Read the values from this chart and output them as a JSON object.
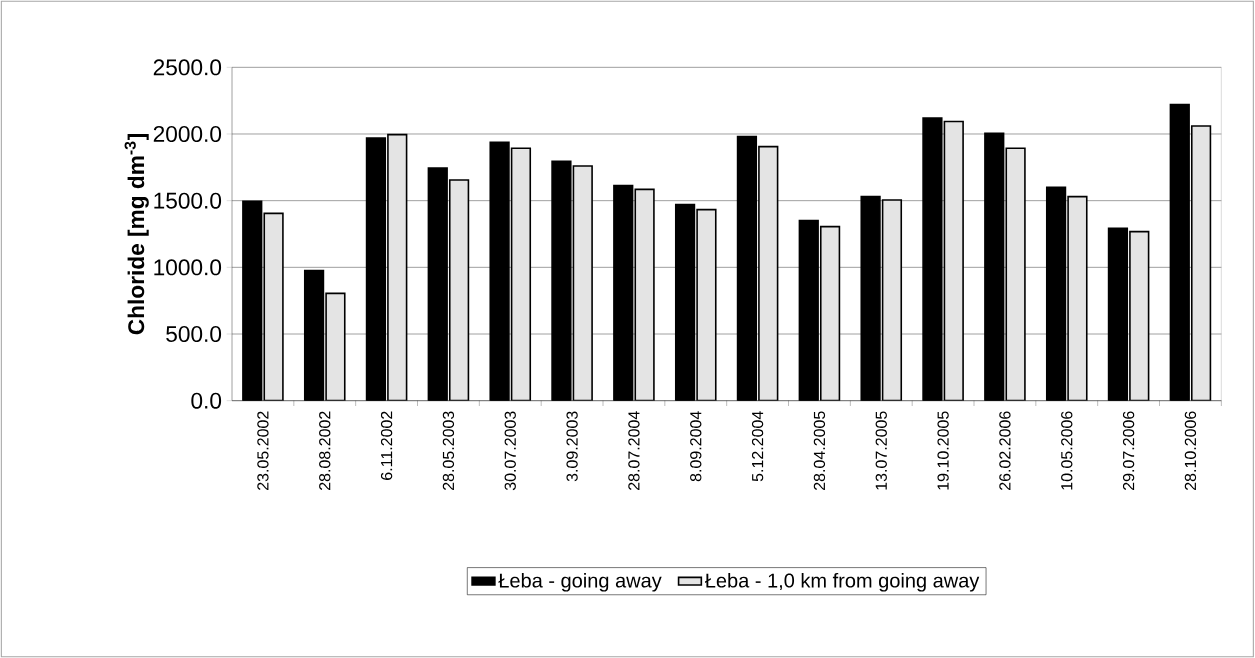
{
  "chart_data": {
    "type": "bar",
    "ylabel": "Chloride [mg dm$^{-3}$]",
    "categories": [
      "23.05.2002",
      "28.08.2002",
      "6.11.2002",
      "28.05.2003",
      "30.07.2003",
      "3.09.2003",
      "28.07.2004",
      "8.09.2004",
      "5.12.2004",
      "28.04.2005",
      "13.07.2005",
      "19.10.2005",
      "26.02.2006",
      "10.05.2006",
      "29.07.2006",
      "28.10.2006"
    ],
    "series": [
      {
        "name": "Łeba - going away",
        "color": "#000000",
        "values": [
          1495,
          975,
          1970,
          1745,
          1938,
          1795,
          1613,
          1470,
          1980,
          1350,
          1530,
          2120,
          2005,
          1600,
          1293,
          2220
        ]
      },
      {
        "name": "Łeba - 1,0 km from going away",
        "color": "#e4e4e4",
        "values": [
          1405,
          805,
          1995,
          1655,
          1893,
          1760,
          1585,
          1433,
          1905,
          1305,
          1505,
          2095,
          1893,
          1530,
          1268,
          2060
        ]
      }
    ],
    "ylim": [
      0,
      2500
    ],
    "yticks": [
      {
        "value": 0,
        "label": "0.0"
      },
      {
        "value": 500,
        "label": "500.0"
      },
      {
        "value": 1000,
        "label": "1000.0"
      },
      {
        "value": 1500,
        "label": "1500.0"
      },
      {
        "value": 2000,
        "label": "2000.0"
      },
      {
        "value": 2500,
        "label": "2500.0"
      }
    ],
    "grid": "y",
    "legend": "bottom"
  }
}
